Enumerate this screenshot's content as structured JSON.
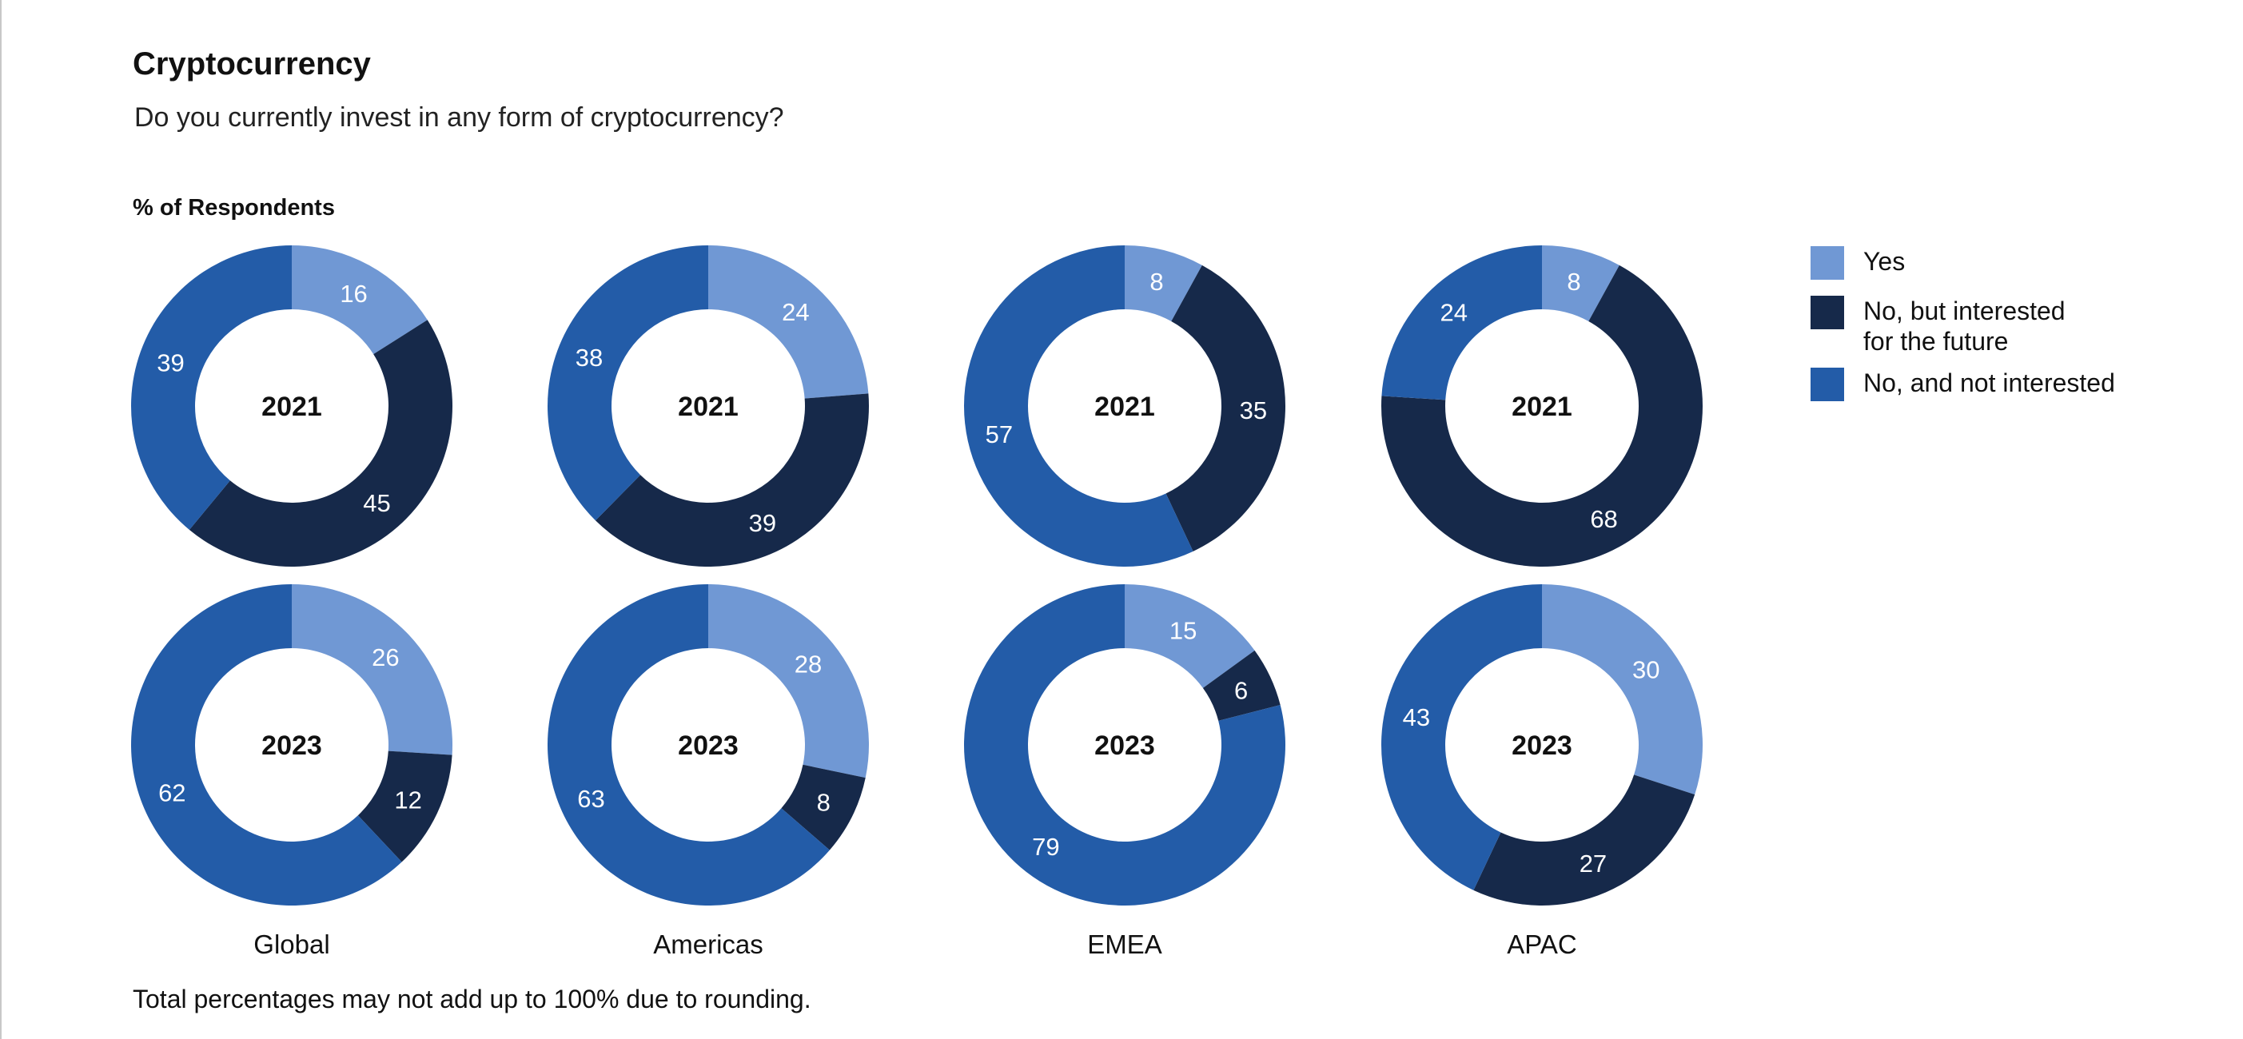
{
  "title": "Cryptocurrency",
  "subtitle": "Do you currently invest in any form of cryptocurrency?",
  "ylabel": "% of Respondents",
  "footnote": "Total percentages may not add up to 100% due to rounding.",
  "colors": {
    "yes": "#7098d4",
    "interested": "#16294a",
    "not_interested": "#235ca8",
    "text_light": "#ffffff"
  },
  "legend": [
    {
      "key": "yes",
      "label_line1": "Yes",
      "label_line2": ""
    },
    {
      "key": "interested",
      "label_line1": "No, but interested",
      "label_line2": "for the future"
    },
    {
      "key": "not_interested",
      "label_line1": "No, and not interested",
      "label_line2": ""
    }
  ],
  "chart_data": {
    "type": "pie",
    "variant": "donut",
    "series_names": [
      "Yes",
      "No, but interested for the future",
      "No, and not interested"
    ],
    "regions": [
      "Global",
      "Americas",
      "EMEA",
      "APAC"
    ],
    "years": [
      "2021",
      "2023"
    ],
    "values": {
      "Global": {
        "2021": [
          16,
          45,
          39
        ],
        "2023": [
          26,
          12,
          62
        ]
      },
      "Americas": {
        "2021": [
          24,
          39,
          38
        ],
        "2023": [
          28,
          8,
          63
        ]
      },
      "EMEA": {
        "2021": [
          8,
          35,
          57
        ],
        "2023": [
          15,
          6,
          79
        ]
      },
      "APAC": {
        "2021": [
          8,
          68,
          24
        ],
        "2023": [
          30,
          27,
          43
        ]
      }
    },
    "legend_position": "right"
  }
}
